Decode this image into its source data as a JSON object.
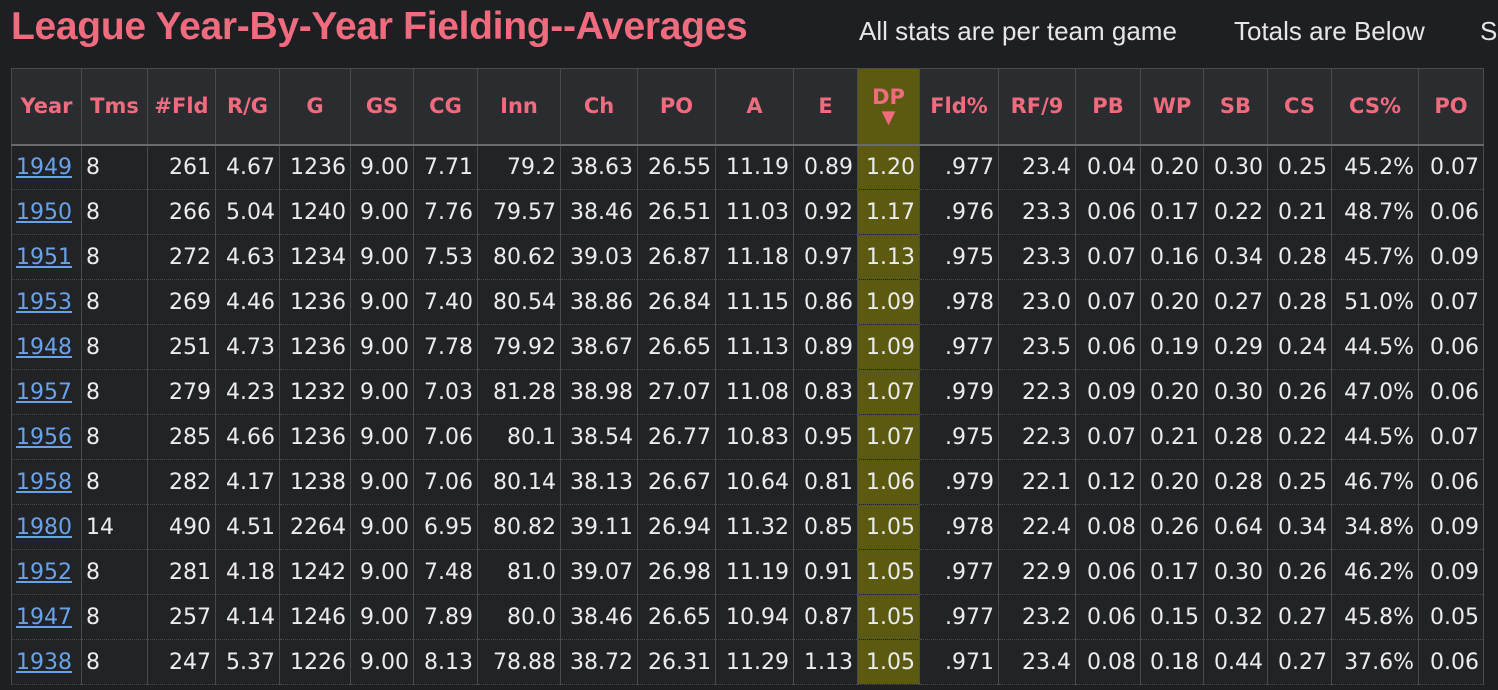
{
  "header": {
    "title": "League Year-By-Year Fielding--Averages",
    "note1": "All stats are per team game",
    "note2": "Totals are Below",
    "note3": "S"
  },
  "table": {
    "columns": [
      "Year",
      "Tms",
      "#Fld",
      "R/G",
      "G",
      "GS",
      "CG",
      "Inn",
      "Ch",
      "PO",
      "A",
      "E",
      "DP",
      "Fld%",
      "RF/9",
      "PB",
      "WP",
      "SB",
      "CS",
      "CS%",
      "PO"
    ],
    "sorted_column": "DP",
    "sort_indicator": "▼",
    "rows": [
      [
        "1949",
        "8",
        "261",
        "4.67",
        "1236",
        "9.00",
        "7.71",
        "79.2",
        "38.63",
        "26.55",
        "11.19",
        "0.89",
        "1.20",
        ".977",
        "23.4",
        "0.04",
        "0.20",
        "0.30",
        "0.25",
        "45.2%",
        "0.07"
      ],
      [
        "1950",
        "8",
        "266",
        "5.04",
        "1240",
        "9.00",
        "7.76",
        "79.57",
        "38.46",
        "26.51",
        "11.03",
        "0.92",
        "1.17",
        ".976",
        "23.3",
        "0.06",
        "0.17",
        "0.22",
        "0.21",
        "48.7%",
        "0.06"
      ],
      [
        "1951",
        "8",
        "272",
        "4.63",
        "1234",
        "9.00",
        "7.53",
        "80.62",
        "39.03",
        "26.87",
        "11.18",
        "0.97",
        "1.13",
        ".975",
        "23.3",
        "0.07",
        "0.16",
        "0.34",
        "0.28",
        "45.7%",
        "0.09"
      ],
      [
        "1953",
        "8",
        "269",
        "4.46",
        "1236",
        "9.00",
        "7.40",
        "80.54",
        "38.86",
        "26.84",
        "11.15",
        "0.86",
        "1.09",
        ".978",
        "23.0",
        "0.07",
        "0.20",
        "0.27",
        "0.28",
        "51.0%",
        "0.07"
      ],
      [
        "1948",
        "8",
        "251",
        "4.73",
        "1236",
        "9.00",
        "7.78",
        "79.92",
        "38.67",
        "26.65",
        "11.13",
        "0.89",
        "1.09",
        ".977",
        "23.5",
        "0.06",
        "0.19",
        "0.29",
        "0.24",
        "44.5%",
        "0.06"
      ],
      [
        "1957",
        "8",
        "279",
        "4.23",
        "1232",
        "9.00",
        "7.03",
        "81.28",
        "38.98",
        "27.07",
        "11.08",
        "0.83",
        "1.07",
        ".979",
        "22.3",
        "0.09",
        "0.20",
        "0.30",
        "0.26",
        "47.0%",
        "0.06"
      ],
      [
        "1956",
        "8",
        "285",
        "4.66",
        "1236",
        "9.00",
        "7.06",
        "80.1",
        "38.54",
        "26.77",
        "10.83",
        "0.95",
        "1.07",
        ".975",
        "22.3",
        "0.07",
        "0.21",
        "0.28",
        "0.22",
        "44.5%",
        "0.07"
      ],
      [
        "1958",
        "8",
        "282",
        "4.17",
        "1238",
        "9.00",
        "7.06",
        "80.14",
        "38.13",
        "26.67",
        "10.64",
        "0.81",
        "1.06",
        ".979",
        "22.1",
        "0.12",
        "0.20",
        "0.28",
        "0.25",
        "46.7%",
        "0.06"
      ],
      [
        "1980",
        "14",
        "490",
        "4.51",
        "2264",
        "9.00",
        "6.95",
        "80.82",
        "39.11",
        "26.94",
        "11.32",
        "0.85",
        "1.05",
        ".978",
        "22.4",
        "0.08",
        "0.26",
        "0.64",
        "0.34",
        "34.8%",
        "0.09"
      ],
      [
        "1952",
        "8",
        "281",
        "4.18",
        "1242",
        "9.00",
        "7.48",
        "81.0",
        "39.07",
        "26.98",
        "11.19",
        "0.91",
        "1.05",
        ".977",
        "22.9",
        "0.06",
        "0.17",
        "0.30",
        "0.26",
        "46.2%",
        "0.09"
      ],
      [
        "1947",
        "8",
        "257",
        "4.14",
        "1246",
        "9.00",
        "7.89",
        "80.0",
        "38.46",
        "26.65",
        "10.94",
        "0.87",
        "1.05",
        ".977",
        "23.2",
        "0.06",
        "0.15",
        "0.32",
        "0.27",
        "45.8%",
        "0.05"
      ],
      [
        "1938",
        "8",
        "247",
        "5.37",
        "1226",
        "9.00",
        "8.13",
        "78.88",
        "38.72",
        "26.31",
        "11.29",
        "1.13",
        "1.05",
        ".971",
        "23.4",
        "0.08",
        "0.18",
        "0.44",
        "0.27",
        "37.6%",
        "0.06"
      ]
    ]
  }
}
